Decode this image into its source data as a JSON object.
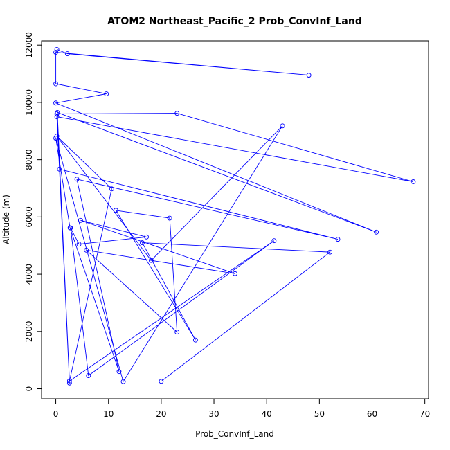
{
  "chart_data": {
    "type": "line",
    "title": "ATOM2 Northeast_Pacific_2 Prob_ConvInf_Land",
    "xlabel": "Prob_ConvInf_Land",
    "ylabel": "Altitude (m)",
    "xlim": [
      -2.7,
      70.7
    ],
    "ylim": [
      -350,
      12150
    ],
    "xticks": [
      0,
      10,
      20,
      30,
      40,
      50,
      60,
      70
    ],
    "yticks": [
      0,
      2000,
      4000,
      6000,
      8000,
      10000,
      12000
    ],
    "grid": false,
    "series": [
      {
        "color": "#0000ff",
        "marker": "open-circle",
        "x": [
          0.2,
          2.2,
          48.0,
          0.0,
          0.0,
          9.6,
          0.0,
          60.8,
          0.3,
          2.6,
          0.2,
          23.0,
          67.8,
          0.2,
          0.7,
          53.5,
          4.0,
          12.0,
          2.7,
          0.0,
          12.8,
          43.0,
          18.1,
          0.2,
          10.6,
          2.6,
          41.4,
          6.2,
          2.8,
          4.4,
          17.2,
          4.7,
          34.0,
          5.8,
          23.0,
          21.6,
          11.4,
          26.5,
          16.4,
          52.0,
          20.0
        ],
        "y": [
          11850,
          11700,
          10950,
          11750,
          10650,
          10300,
          9980,
          5470,
          9650,
          200,
          9600,
          9620,
          7230,
          9500,
          7670,
          5220,
          7320,
          600,
          5620,
          8750,
          250,
          9180,
          4480,
          8820,
          6980,
          270,
          5170,
          460,
          5620,
          5050,
          5300,
          5880,
          4020,
          4840,
          1980,
          5960,
          6230,
          1700,
          5100,
          4770,
          260
        ]
      }
    ]
  }
}
